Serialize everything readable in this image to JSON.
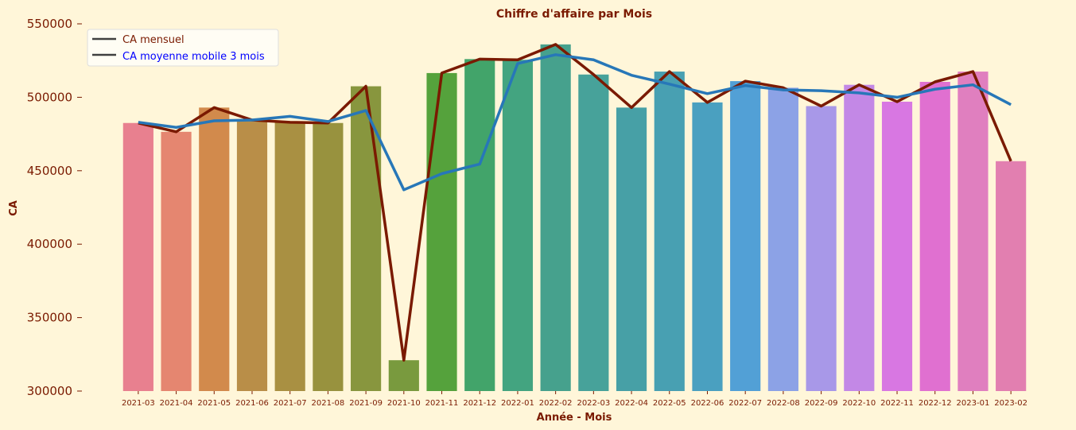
{
  "chart_data": {
    "type": "bar",
    "title": "Chiffre d'affaire par Mois",
    "xlabel": "Année - Mois",
    "ylabel": "CA",
    "ylim": [
      300000,
      550000
    ],
    "yticks": [
      "300000",
      "350000",
      "400000",
      "450000",
      "500000",
      "550000"
    ],
    "grid": false,
    "legend_position": "top-left",
    "categories": [
      "2021-03",
      "2021-04",
      "2021-05",
      "2021-06",
      "2021-07",
      "2021-08",
      "2021-09",
      "2021-10",
      "2021-11",
      "2021-12",
      "2022-01",
      "2022-02",
      "2022-03",
      "2022-04",
      "2022-05",
      "2022-06",
      "2022-07",
      "2022-08",
      "2022-09",
      "2022-10",
      "2022-11",
      "2022-12",
      "2023-01",
      "2023-02"
    ],
    "bar_values": [
      482500,
      476500,
      493000,
      484500,
      483000,
      482500,
      507500,
      321000,
      516500,
      526000,
      525500,
      536000,
      515500,
      493000,
      517500,
      496500,
      511000,
      506500,
      494000,
      508500,
      497000,
      510500,
      517500,
      456500
    ],
    "bar_colors": [
      "#e8808f",
      "#e58670",
      "#d28a4c",
      "#b98e48",
      "#a99042",
      "#98923e",
      "#88963e",
      "#799a3e",
      "#55a23c",
      "#42a46a",
      "#43a480",
      "#46a18d",
      "#47a29a",
      "#47a0a6",
      "#48a0b2",
      "#4aa0c0",
      "#52a0d6",
      "#8ca2e6",
      "#a898e8",
      "#c388e6",
      "#d877e2",
      "#e070d0",
      "#e07fbf",
      "#e27fb0"
    ],
    "series": [
      {
        "name": "CA mensuel",
        "color": "#7a1a00",
        "values": [
          482500,
          476500,
          493000,
          484500,
          483000,
          482500,
          507500,
          321000,
          516500,
          526000,
          525500,
          536000,
          515500,
          493000,
          517500,
          496500,
          511000,
          506500,
          494000,
          508500,
          497000,
          510500,
          517500,
          456500
        ]
      },
      {
        "name": "CA moyenne mobile 3 mois",
        "color": "#2777b8",
        "values": [
          483000,
          479500,
          484000,
          484500,
          487000,
          483500,
          491000,
          437000,
          448000,
          454500,
          523000,
          529000,
          525500,
          515000,
          509000,
          502500,
          508000,
          505000,
          504500,
          503000,
          500000,
          505500,
          508500,
          495000
        ]
      }
    ],
    "legend_colors": {
      "label_1": "#7a1a00",
      "label_2": "#0000ff",
      "line": "#404040"
    }
  }
}
